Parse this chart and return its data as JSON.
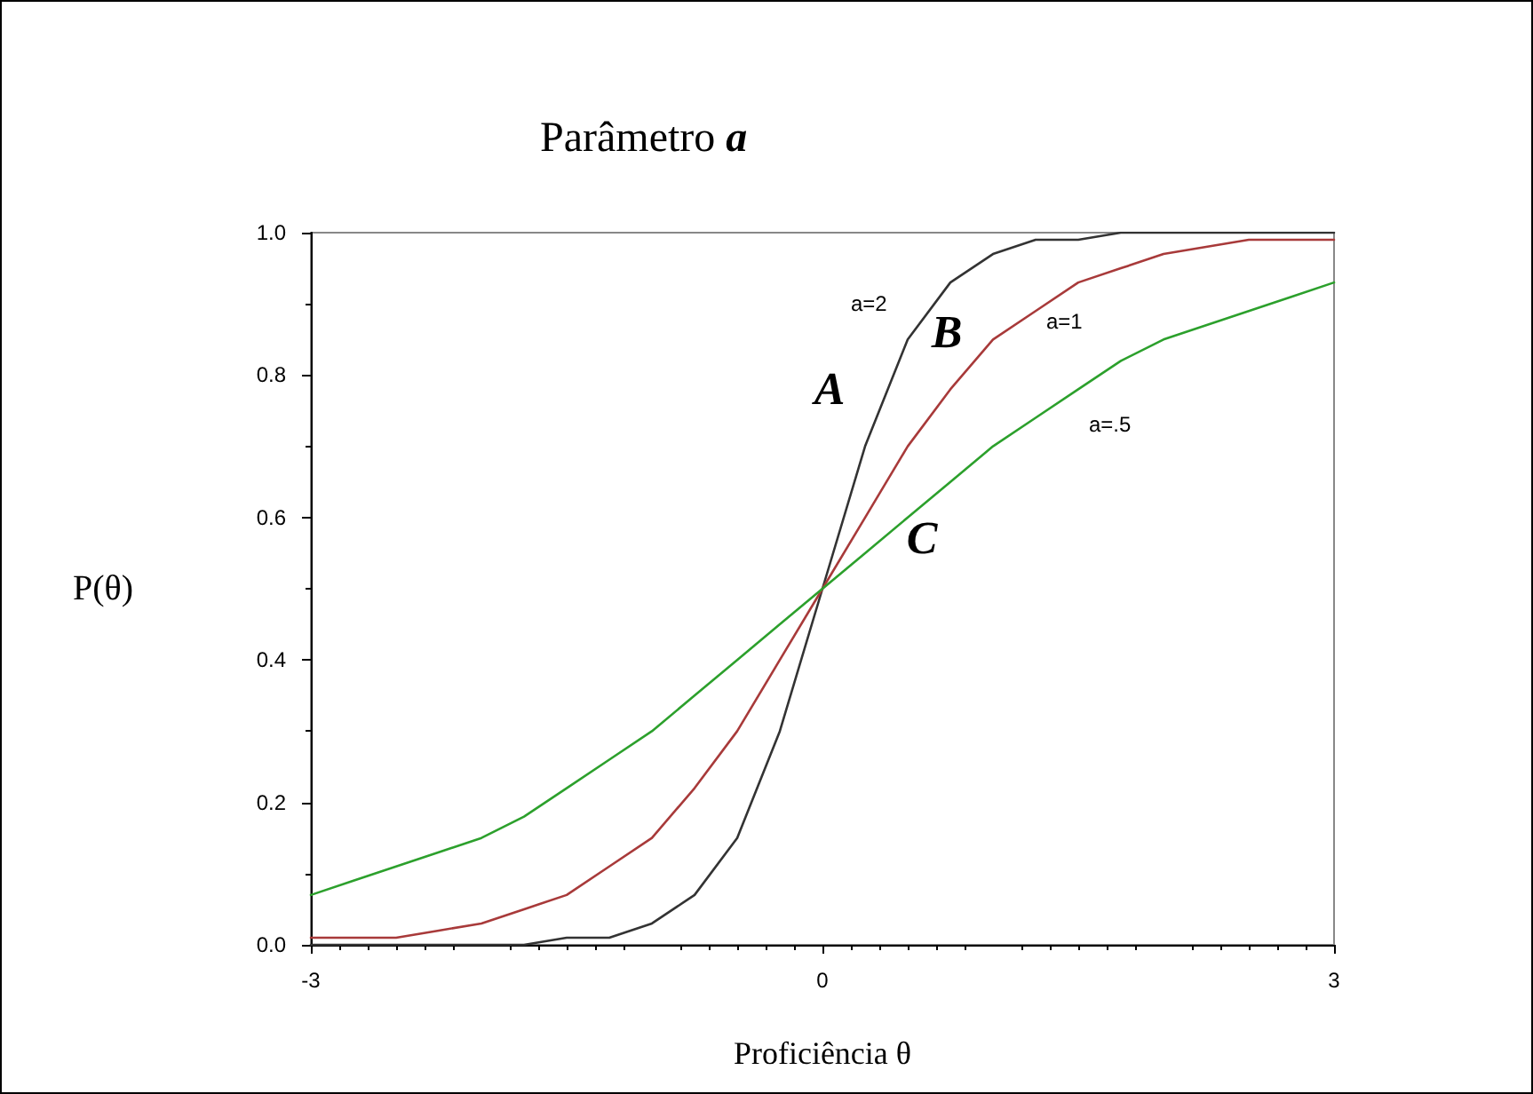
{
  "chart_data": {
    "type": "line",
    "title": "Parâmetro a",
    "xlabel": "Proficiência θ",
    "ylabel": "P(θ)",
    "x": [
      -3,
      -2.75,
      -2.5,
      -2.25,
      -2,
      -1.75,
      -1.5,
      -1.25,
      -1,
      -0.75,
      -0.5,
      -0.25,
      0,
      0.25,
      0.5,
      0.75,
      1,
      1.25,
      1.5,
      1.75,
      2,
      2.25,
      2.5,
      2.75,
      3
    ],
    "series": [
      {
        "color": "#333333",
        "values": [
          0,
          0,
          0,
          0,
          0,
          0,
          0.01,
          0.01,
          0.03,
          0.07,
          0.15,
          0.3,
          0.5,
          0.7,
          0.85,
          0.93,
          0.97,
          0.99,
          0.99,
          1,
          1,
          1,
          1,
          1,
          1
        ]
      },
      {
        "color": "#a83a3a",
        "values": [
          0.01,
          0.01,
          0.01,
          0.02,
          0.03,
          0.05,
          0.07,
          0.11,
          0.15,
          0.22,
          0.3,
          0.4,
          0.5,
          0.6,
          0.7,
          0.78,
          0.85,
          0.89,
          0.93,
          0.95,
          0.97,
          0.98,
          0.99,
          0.99,
          0.99
        ]
      },
      {
        "color": "#2ca02c",
        "values": [
          0.07,
          0.09,
          0.11,
          0.13,
          0.15,
          0.18,
          0.22,
          0.26,
          0.3,
          0.35,
          0.4,
          0.45,
          0.5,
          0.55,
          0.6,
          0.65,
          0.7,
          0.74,
          0.78,
          0.82,
          0.85,
          0.87,
          0.89,
          0.91,
          0.93
        ]
      }
    ],
    "xlim": [
      -3,
      3
    ],
    "xticks": [
      -3,
      0,
      3
    ],
    "ylim": [
      0,
      1
    ],
    "yticks": [
      {
        "value": 0,
        "label": "0.0"
      },
      {
        "value": 0.2,
        "label": "0.2"
      },
      {
        "value": 0.4,
        "label": "0.4"
      },
      {
        "value": 0.6,
        "label": "0.6"
      },
      {
        "value": 0.8,
        "label": "0.8"
      },
      {
        "value": 1,
        "label": "1.0"
      }
    ],
    "grid": false,
    "marker": "none",
    "line_style": "solid",
    "annotations": [
      "a=2",
      "a=1",
      "a=.5",
      "A",
      "B",
      "C"
    ]
  }
}
